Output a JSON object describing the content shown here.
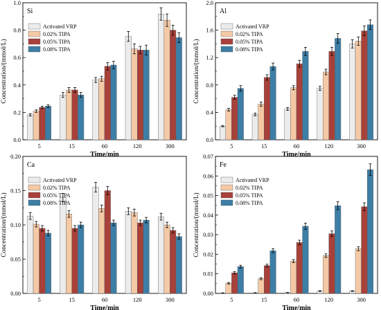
{
  "figure": {
    "legend_entries": [
      "Activated VRP",
      "0.02% TIPA",
      "0.05% TIPA",
      "0.08% TIPA"
    ],
    "series_colors": [
      "#ececec",
      "#f4c9a6",
      "#a8413a",
      "#3d7ea6"
    ]
  },
  "chart_data": [
    {
      "type": "bar",
      "panel_label": "Si",
      "categories": [
        "5",
        "15",
        "60",
        "120",
        "300"
      ],
      "xlabel": "Time/min",
      "ylabel": "Concentration/(mmol/L)",
      "ylim": [
        0,
        1.1
      ],
      "yticks": [
        "0.0",
        "0.2",
        "0.4",
        "0.6",
        "0.8",
        "1.0"
      ],
      "legend_position": "top-left",
      "series": [
        {
          "name": "Activated VRP",
          "values": [
            0.2,
            0.36,
            0.48,
            0.83,
            1.01
          ],
          "errors": [
            0.01,
            0.02,
            0.02,
            0.04,
            0.05
          ]
        },
        {
          "name": "0.02% TIPA",
          "values": [
            0.23,
            0.4,
            0.49,
            0.73,
            0.96
          ],
          "errors": [
            0.01,
            0.02,
            0.02,
            0.04,
            0.05
          ]
        },
        {
          "name": "0.05% TIPA",
          "values": [
            0.26,
            0.4,
            0.59,
            0.72,
            0.88
          ],
          "errors": [
            0.01,
            0.02,
            0.03,
            0.03,
            0.04
          ]
        },
        {
          "name": "0.08% TIPA",
          "values": [
            0.27,
            0.36,
            0.6,
            0.72,
            0.82
          ],
          "errors": [
            0.01,
            0.02,
            0.03,
            0.04,
            0.04
          ]
        }
      ]
    },
    {
      "type": "bar",
      "panel_label": "Al",
      "categories": [
        "5",
        "15",
        "60",
        "120",
        "300"
      ],
      "xlabel": "Time/min",
      "ylabel": "Concentration/(mmol/L)",
      "ylim": [
        0,
        2.0
      ],
      "yticks": [
        "0.0",
        "0.4",
        "0.8",
        "1.2",
        "1.6",
        "2.0"
      ],
      "legend_position": "top-left",
      "series": [
        {
          "name": "Activated VRP",
          "values": [
            0.2,
            0.37,
            0.45,
            0.75,
            1.4
          ],
          "errors": [
            0.01,
            0.02,
            0.02,
            0.03,
            0.06
          ]
        },
        {
          "name": "0.02% TIPA",
          "values": [
            0.44,
            0.52,
            0.76,
            0.99,
            1.44
          ],
          "errors": [
            0.02,
            0.03,
            0.03,
            0.04,
            0.06
          ]
        },
        {
          "name": "0.05% TIPA",
          "values": [
            0.62,
            0.91,
            1.11,
            1.29,
            1.59
          ],
          "errors": [
            0.03,
            0.04,
            0.05,
            0.06,
            0.07
          ]
        },
        {
          "name": "0.08% TIPA",
          "values": [
            0.75,
            1.07,
            1.29,
            1.48,
            1.68
          ],
          "errors": [
            0.04,
            0.05,
            0.06,
            0.07,
            0.07
          ]
        }
      ]
    },
    {
      "type": "bar",
      "panel_label": "Ca",
      "categories": [
        "5",
        "15",
        "60",
        "120",
        "300"
      ],
      "xlabel": "Time/min",
      "ylabel": "Concentration/(mmol/L)",
      "ylim": [
        0,
        0.2
      ],
      "yticks": [
        "0.00",
        "0.05",
        "0.10",
        "0.15",
        "0.20"
      ],
      "legend_position": "top-left",
      "series": [
        {
          "name": "Activated VRP",
          "values": [
            0.113,
            0.14,
            0.155,
            0.12,
            0.112
          ],
          "errors": [
            0.005,
            0.006,
            0.007,
            0.005,
            0.005
          ]
        },
        {
          "name": "0.02% TIPA",
          "values": [
            0.101,
            0.116,
            0.124,
            0.118,
            0.1
          ],
          "errors": [
            0.004,
            0.005,
            0.005,
            0.005,
            0.004
          ]
        },
        {
          "name": "0.05% TIPA",
          "values": [
            0.095,
            0.095,
            0.15,
            0.103,
            0.092
          ],
          "errors": [
            0.004,
            0.004,
            0.006,
            0.004,
            0.004
          ]
        },
        {
          "name": "0.08% TIPA",
          "values": [
            0.088,
            0.1,
            0.103,
            0.107,
            0.083
          ],
          "errors": [
            0.004,
            0.004,
            0.004,
            0.004,
            0.004
          ]
        }
      ]
    },
    {
      "type": "bar",
      "panel_label": "Fe",
      "categories": [
        "5",
        "15",
        "60",
        "120",
        "300"
      ],
      "xlabel": "Time/min",
      "ylabel": "Concentration/(mmol/L)",
      "ylim": [
        0,
        0.07
      ],
      "yticks": [
        "0.00",
        "0.01",
        "0.02",
        "0.03",
        "0.04",
        "0.05",
        "0.06",
        "0.07"
      ],
      "legend_position": "top-left",
      "series": [
        {
          "name": "Activated VRP",
          "values": [
            0.0002,
            0.0003,
            0.0004,
            0.0012,
            0.0012
          ],
          "errors": [
            0.0001,
            0.0001,
            0.0001,
            0.0002,
            0.0002
          ]
        },
        {
          "name": "0.02% TIPA",
          "values": [
            0.0052,
            0.0075,
            0.0165,
            0.0193,
            0.0228
          ],
          "errors": [
            0.0004,
            0.0005,
            0.0008,
            0.0009,
            0.001
          ]
        },
        {
          "name": "0.05% TIPA",
          "values": [
            0.0105,
            0.0142,
            0.026,
            0.0305,
            0.0443
          ],
          "errors": [
            0.0006,
            0.0007,
            0.0012,
            0.0014,
            0.002
          ]
        },
        {
          "name": "0.08% TIPA",
          "values": [
            0.0137,
            0.0218,
            0.0343,
            0.0448,
            0.0632
          ],
          "errors": [
            0.0007,
            0.001,
            0.0016,
            0.002,
            0.003
          ]
        }
      ]
    }
  ]
}
